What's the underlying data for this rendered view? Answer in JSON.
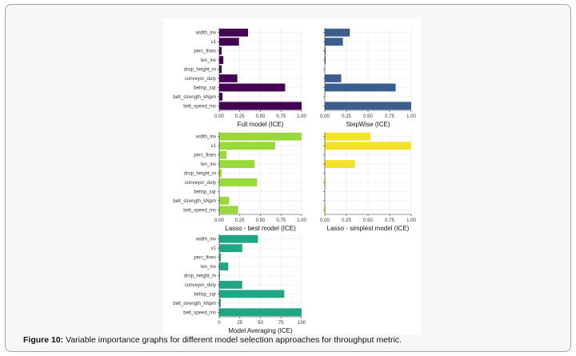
{
  "figure": {
    "caption_label": "Figure 10:",
    "caption_text": " Variable importance graphs for different model selection approaches for throughput metric."
  },
  "chart_data": [
    {
      "type": "bar",
      "orientation": "horizontal",
      "xlabel": "Full model (ICE)",
      "categories": [
        "width_inv",
        "v1",
        "perc_fines",
        "len_inv",
        "drop_height_m",
        "conveyor_duty",
        "beltsp_sqr",
        "belt_strength_kNpm",
        "belt_speed_ms"
      ],
      "values": [
        0.35,
        0.24,
        0.03,
        0.05,
        0.03,
        0.22,
        0.8,
        0.04,
        1.0
      ],
      "xlim": [
        0,
        1
      ],
      "xticks": [
        "0.00",
        "0.25",
        "0.50",
        "0.75",
        "1.00"
      ],
      "color": "#440154",
      "show_category_labels": true
    },
    {
      "type": "bar",
      "orientation": "horizontal",
      "xlabel": "StepWise (ICE)",
      "categories": [
        "width_inv",
        "v1",
        "perc_fines",
        "len_inv",
        "drop_height_m",
        "conveyor_duty",
        "beltsp_sqr",
        "belt_strength_kNpm",
        "belt_speed_ms"
      ],
      "values": [
        0.29,
        0.21,
        0.01,
        0.01,
        0.0,
        0.19,
        0.82,
        0.0,
        1.0
      ],
      "xlim": [
        0,
        1
      ],
      "xticks": [
        "0.00",
        "0.25",
        "0.50",
        "0.75",
        "1.00"
      ],
      "color": "#3b5e8c",
      "show_category_labels": false
    },
    {
      "type": "bar",
      "orientation": "horizontal",
      "xlabel": "Lasso - best model (ICE)",
      "categories": [
        "width_inv",
        "v1",
        "perc_fines",
        "len_inv",
        "drop_height_m",
        "conveyor_duty",
        "beltsp_sqr",
        "belt_strength_kNpm",
        "belt_speed_ms"
      ],
      "values": [
        1.0,
        0.68,
        0.09,
        0.43,
        0.03,
        0.46,
        0.0,
        0.12,
        0.23
      ],
      "xlim": [
        0,
        1
      ],
      "xticks": [
        "0.00",
        "0.25",
        "0.50",
        "0.75",
        "1.00"
      ],
      "color": "#9ad93c",
      "show_category_labels": true
    },
    {
      "type": "bar",
      "orientation": "horizontal",
      "xlabel": "Lasso - simplest model (ICE)",
      "categories": [
        "width_inv",
        "v1",
        "perc_fines",
        "len_inv",
        "drop_height_m",
        "conveyor_duty",
        "beltsp_sqr",
        "belt_strength_kNpm",
        "belt_speed_ms"
      ],
      "values": [
        0.53,
        1.0,
        0.0,
        0.35,
        0.0,
        0.01,
        0.0,
        0.0,
        0.01
      ],
      "xlim": [
        0,
        1
      ],
      "xticks": [
        "0.00",
        "0.25",
        "0.50",
        "0.75",
        "1.00"
      ],
      "color": "#f5e22b",
      "show_category_labels": false
    },
    {
      "type": "bar",
      "orientation": "horizontal",
      "xlabel": "Model Averaging (ICE)",
      "categories": [
        "width_inv",
        "v1",
        "perc_fines",
        "len_inv",
        "drop_height_m",
        "conveyor_duty",
        "beltsp_sqr",
        "belt_strength_kNpm",
        "belt_speed_ms"
      ],
      "values": [
        47,
        28,
        2,
        11,
        1,
        28,
        79,
        2,
        100
      ],
      "xlim": [
        0,
        100
      ],
      "xticks": [
        "0",
        "25",
        "50",
        "75",
        "100"
      ],
      "color": "#21a685",
      "show_category_labels": true
    }
  ]
}
